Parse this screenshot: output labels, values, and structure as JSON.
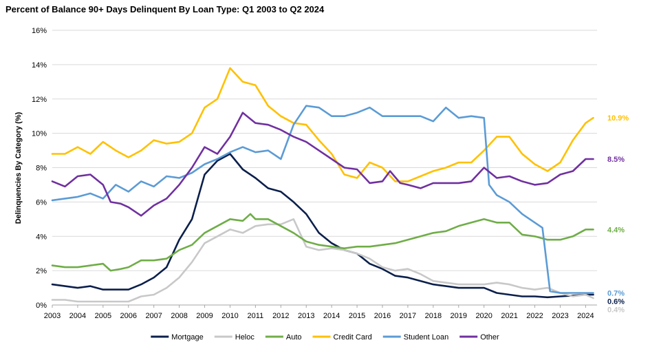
{
  "chart_data": {
    "type": "line",
    "title": "Percent of Balance 90+ Days Delinquent By Loan Type: Q1 2003 to Q2 2024",
    "ylabel": "Delinquencies By Category (%)",
    "xlabel": "",
    "ylim": [
      0,
      16
    ],
    "xlim": [
      2003,
      2024.45
    ],
    "y_ticks": [
      "0%",
      "2%",
      "4%",
      "6%",
      "8%",
      "10%",
      "12%",
      "14%",
      "16%"
    ],
    "x_ticks": [
      "2003",
      "2004",
      "2005",
      "2006",
      "2007",
      "2008",
      "2009",
      "2010",
      "2011",
      "2012",
      "2013",
      "2014",
      "2015",
      "2016",
      "2017",
      "2018",
      "2019",
      "2020",
      "2021",
      "2022",
      "2023",
      "2024"
    ],
    "grid": "horizontal",
    "legend": "bottom",
    "series": [
      {
        "name": "Mortgage",
        "color": "#0b1f4b",
        "end_label": "0.6%",
        "points": [
          [
            2003,
            1.2
          ],
          [
            2003.5,
            1.1
          ],
          [
            2004,
            1.0
          ],
          [
            2004.5,
            1.1
          ],
          [
            2005,
            0.9
          ],
          [
            2005.5,
            0.9
          ],
          [
            2006,
            0.9
          ],
          [
            2006.5,
            1.2
          ],
          [
            2007,
            1.6
          ],
          [
            2007.5,
            2.2
          ],
          [
            2008,
            3.8
          ],
          [
            2008.5,
            5.0
          ],
          [
            2009,
            7.6
          ],
          [
            2009.5,
            8.4
          ],
          [
            2010,
            8.8
          ],
          [
            2010.5,
            7.9
          ],
          [
            2011,
            7.4
          ],
          [
            2011.5,
            6.8
          ],
          [
            2012,
            6.6
          ],
          [
            2012.5,
            6.0
          ],
          [
            2013,
            5.3
          ],
          [
            2013.5,
            4.2
          ],
          [
            2014,
            3.6
          ],
          [
            2014.5,
            3.2
          ],
          [
            2015,
            3.0
          ],
          [
            2015.5,
            2.4
          ],
          [
            2016,
            2.1
          ],
          [
            2016.5,
            1.7
          ],
          [
            2017,
            1.6
          ],
          [
            2017.5,
            1.4
          ],
          [
            2018,
            1.2
          ],
          [
            2018.5,
            1.1
          ],
          [
            2019,
            1.0
          ],
          [
            2019.5,
            1.0
          ],
          [
            2020,
            1.0
          ],
          [
            2020.5,
            0.7
          ],
          [
            2021,
            0.6
          ],
          [
            2021.5,
            0.5
          ],
          [
            2022,
            0.5
          ],
          [
            2022.5,
            0.45
          ],
          [
            2023,
            0.5
          ],
          [
            2023.5,
            0.55
          ],
          [
            2024,
            0.6
          ],
          [
            2024.3,
            0.6
          ]
        ]
      },
      {
        "name": "Heloc",
        "color": "#c8c8c8",
        "end_label": "0.4%",
        "points": [
          [
            2003,
            0.3
          ],
          [
            2003.5,
            0.3
          ],
          [
            2004,
            0.2
          ],
          [
            2004.5,
            0.2
          ],
          [
            2005,
            0.2
          ],
          [
            2005.5,
            0.2
          ],
          [
            2006,
            0.2
          ],
          [
            2006.5,
            0.5
          ],
          [
            2007,
            0.6
          ],
          [
            2007.5,
            1.0
          ],
          [
            2008,
            1.6
          ],
          [
            2008.5,
            2.5
          ],
          [
            2009,
            3.6
          ],
          [
            2009.5,
            4.0
          ],
          [
            2010,
            4.4
          ],
          [
            2010.5,
            4.2
          ],
          [
            2011,
            4.6
          ],
          [
            2011.5,
            4.7
          ],
          [
            2012,
            4.7
          ],
          [
            2012.5,
            5.0
          ],
          [
            2013,
            3.4
          ],
          [
            2013.5,
            3.2
          ],
          [
            2014,
            3.3
          ],
          [
            2014.5,
            3.2
          ],
          [
            2015,
            3.0
          ],
          [
            2015.5,
            2.7
          ],
          [
            2016,
            2.2
          ],
          [
            2016.5,
            2.0
          ],
          [
            2017,
            2.1
          ],
          [
            2017.5,
            1.8
          ],
          [
            2018,
            1.4
          ],
          [
            2018.5,
            1.3
          ],
          [
            2019,
            1.2
          ],
          [
            2019.5,
            1.2
          ],
          [
            2020,
            1.2
          ],
          [
            2020.5,
            1.3
          ],
          [
            2021,
            1.2
          ],
          [
            2021.5,
            1.0
          ],
          [
            2022,
            0.9
          ],
          [
            2022.5,
            1.0
          ],
          [
            2023,
            0.7
          ],
          [
            2023.5,
            0.5
          ],
          [
            2024,
            0.6
          ],
          [
            2024.3,
            0.4
          ]
        ]
      },
      {
        "name": "Auto",
        "color": "#6fad47",
        "end_label": "4.4%",
        "points": [
          [
            2003,
            2.3
          ],
          [
            2003.5,
            2.2
          ],
          [
            2004,
            2.2
          ],
          [
            2004.5,
            2.3
          ],
          [
            2005,
            2.4
          ],
          [
            2005.3,
            2.0
          ],
          [
            2005.7,
            2.1
          ],
          [
            2006,
            2.2
          ],
          [
            2006.5,
            2.6
          ],
          [
            2007,
            2.6
          ],
          [
            2007.5,
            2.7
          ],
          [
            2008,
            3.2
          ],
          [
            2008.5,
            3.5
          ],
          [
            2009,
            4.2
          ],
          [
            2009.5,
            4.6
          ],
          [
            2010,
            5.0
          ],
          [
            2010.5,
            4.9
          ],
          [
            2010.8,
            5.3
          ],
          [
            2011,
            5.0
          ],
          [
            2011.5,
            5.0
          ],
          [
            2012,
            4.6
          ],
          [
            2012.5,
            4.2
          ],
          [
            2013,
            3.7
          ],
          [
            2013.5,
            3.5
          ],
          [
            2014,
            3.4
          ],
          [
            2014.5,
            3.3
          ],
          [
            2015,
            3.4
          ],
          [
            2015.5,
            3.4
          ],
          [
            2016,
            3.5
          ],
          [
            2016.5,
            3.6
          ],
          [
            2017,
            3.8
          ],
          [
            2017.5,
            4.0
          ],
          [
            2018,
            4.2
          ],
          [
            2018.5,
            4.3
          ],
          [
            2019,
            4.6
          ],
          [
            2019.5,
            4.8
          ],
          [
            2020,
            5.0
          ],
          [
            2020.5,
            4.8
          ],
          [
            2021,
            4.8
          ],
          [
            2021.5,
            4.1
          ],
          [
            2022,
            4.0
          ],
          [
            2022.5,
            3.8
          ],
          [
            2023,
            3.8
          ],
          [
            2023.5,
            4.0
          ],
          [
            2024,
            4.4
          ],
          [
            2024.3,
            4.4
          ]
        ]
      },
      {
        "name": "Credit Card",
        "color": "#ffc000",
        "end_label": "10.9%",
        "points": [
          [
            2003,
            8.8
          ],
          [
            2003.5,
            8.8
          ],
          [
            2004,
            9.2
          ],
          [
            2004.5,
            8.8
          ],
          [
            2005,
            9.5
          ],
          [
            2005.5,
            9.0
          ],
          [
            2006,
            8.6
          ],
          [
            2006.5,
            9.0
          ],
          [
            2007,
            9.6
          ],
          [
            2007.5,
            9.4
          ],
          [
            2008,
            9.5
          ],
          [
            2008.5,
            10.0
          ],
          [
            2009,
            11.5
          ],
          [
            2009.5,
            12.0
          ],
          [
            2010,
            13.8
          ],
          [
            2010.5,
            13.0
          ],
          [
            2011,
            12.8
          ],
          [
            2011.5,
            11.6
          ],
          [
            2012,
            11.0
          ],
          [
            2012.5,
            10.6
          ],
          [
            2013,
            10.5
          ],
          [
            2013.5,
            9.6
          ],
          [
            2014,
            8.8
          ],
          [
            2014.5,
            7.6
          ],
          [
            2015,
            7.4
          ],
          [
            2015.5,
            8.3
          ],
          [
            2016,
            8.0
          ],
          [
            2016.5,
            7.2
          ],
          [
            2017,
            7.2
          ],
          [
            2017.5,
            7.5
          ],
          [
            2018,
            7.8
          ],
          [
            2018.5,
            8.0
          ],
          [
            2019,
            8.3
          ],
          [
            2019.5,
            8.3
          ],
          [
            2020,
            9.0
          ],
          [
            2020.5,
            9.8
          ],
          [
            2021,
            9.8
          ],
          [
            2021.5,
            8.8
          ],
          [
            2022,
            8.2
          ],
          [
            2022.5,
            7.8
          ],
          [
            2023,
            8.3
          ],
          [
            2023.5,
            9.6
          ],
          [
            2024,
            10.6
          ],
          [
            2024.3,
            10.9
          ]
        ]
      },
      {
        "name": "Student Loan",
        "color": "#5b9bd5",
        "end_label": "0.7%",
        "points": [
          [
            2003,
            6.1
          ],
          [
            2003.5,
            6.2
          ],
          [
            2004,
            6.3
          ],
          [
            2004.5,
            6.5
          ],
          [
            2005,
            6.2
          ],
          [
            2005.5,
            7.0
          ],
          [
            2006,
            6.6
          ],
          [
            2006.5,
            7.2
          ],
          [
            2007,
            6.9
          ],
          [
            2007.5,
            7.5
          ],
          [
            2008,
            7.4
          ],
          [
            2008.5,
            7.7
          ],
          [
            2009,
            8.2
          ],
          [
            2009.5,
            8.5
          ],
          [
            2010,
            8.9
          ],
          [
            2010.5,
            9.2
          ],
          [
            2011,
            8.9
          ],
          [
            2011.5,
            9.0
          ],
          [
            2012,
            8.5
          ],
          [
            2012.5,
            10.5
          ],
          [
            2013,
            11.6
          ],
          [
            2013.5,
            11.5
          ],
          [
            2014,
            11.0
          ],
          [
            2014.5,
            11.0
          ],
          [
            2015,
            11.2
          ],
          [
            2015.5,
            11.5
          ],
          [
            2016,
            11.0
          ],
          [
            2016.5,
            11.0
          ],
          [
            2017,
            11.0
          ],
          [
            2017.5,
            11.0
          ],
          [
            2018,
            10.7
          ],
          [
            2018.5,
            11.5
          ],
          [
            2019,
            10.9
          ],
          [
            2019.5,
            11.0
          ],
          [
            2020,
            10.9
          ],
          [
            2020.2,
            7.0
          ],
          [
            2020.5,
            6.4
          ],
          [
            2021,
            6.0
          ],
          [
            2021.5,
            5.3
          ],
          [
            2022,
            4.8
          ],
          [
            2022.3,
            4.5
          ],
          [
            2022.6,
            0.8
          ],
          [
            2023,
            0.7
          ],
          [
            2023.5,
            0.7
          ],
          [
            2024,
            0.7
          ],
          [
            2024.3,
            0.7
          ]
        ]
      },
      {
        "name": "Other",
        "color": "#7030a0",
        "end_label": "8.5%",
        "points": [
          [
            2003,
            7.2
          ],
          [
            2003.5,
            6.9
          ],
          [
            2004,
            7.5
          ],
          [
            2004.5,
            7.6
          ],
          [
            2005,
            7.0
          ],
          [
            2005.3,
            6.0
          ],
          [
            2005.7,
            5.9
          ],
          [
            2006,
            5.7
          ],
          [
            2006.5,
            5.2
          ],
          [
            2007,
            5.8
          ],
          [
            2007.5,
            6.2
          ],
          [
            2008,
            7.0
          ],
          [
            2008.5,
            8.0
          ],
          [
            2009,
            9.2
          ],
          [
            2009.5,
            8.8
          ],
          [
            2010,
            9.8
          ],
          [
            2010.5,
            11.2
          ],
          [
            2011,
            10.6
          ],
          [
            2011.5,
            10.5
          ],
          [
            2012,
            10.2
          ],
          [
            2012.5,
            9.8
          ],
          [
            2013,
            9.5
          ],
          [
            2013.5,
            9.0
          ],
          [
            2014,
            8.5
          ],
          [
            2014.5,
            8.0
          ],
          [
            2015,
            7.9
          ],
          [
            2015.5,
            7.1
          ],
          [
            2016,
            7.2
          ],
          [
            2016.3,
            7.8
          ],
          [
            2016.7,
            7.1
          ],
          [
            2017,
            7.0
          ],
          [
            2017.5,
            6.8
          ],
          [
            2018,
            7.1
          ],
          [
            2018.5,
            7.1
          ],
          [
            2019,
            7.1
          ],
          [
            2019.5,
            7.2
          ],
          [
            2020,
            8.0
          ],
          [
            2020.5,
            7.4
          ],
          [
            2021,
            7.5
          ],
          [
            2021.5,
            7.2
          ],
          [
            2022,
            7.0
          ],
          [
            2022.5,
            7.1
          ],
          [
            2023,
            7.6
          ],
          [
            2023.5,
            7.8
          ],
          [
            2024,
            8.5
          ],
          [
            2024.3,
            8.5
          ]
        ]
      }
    ]
  }
}
